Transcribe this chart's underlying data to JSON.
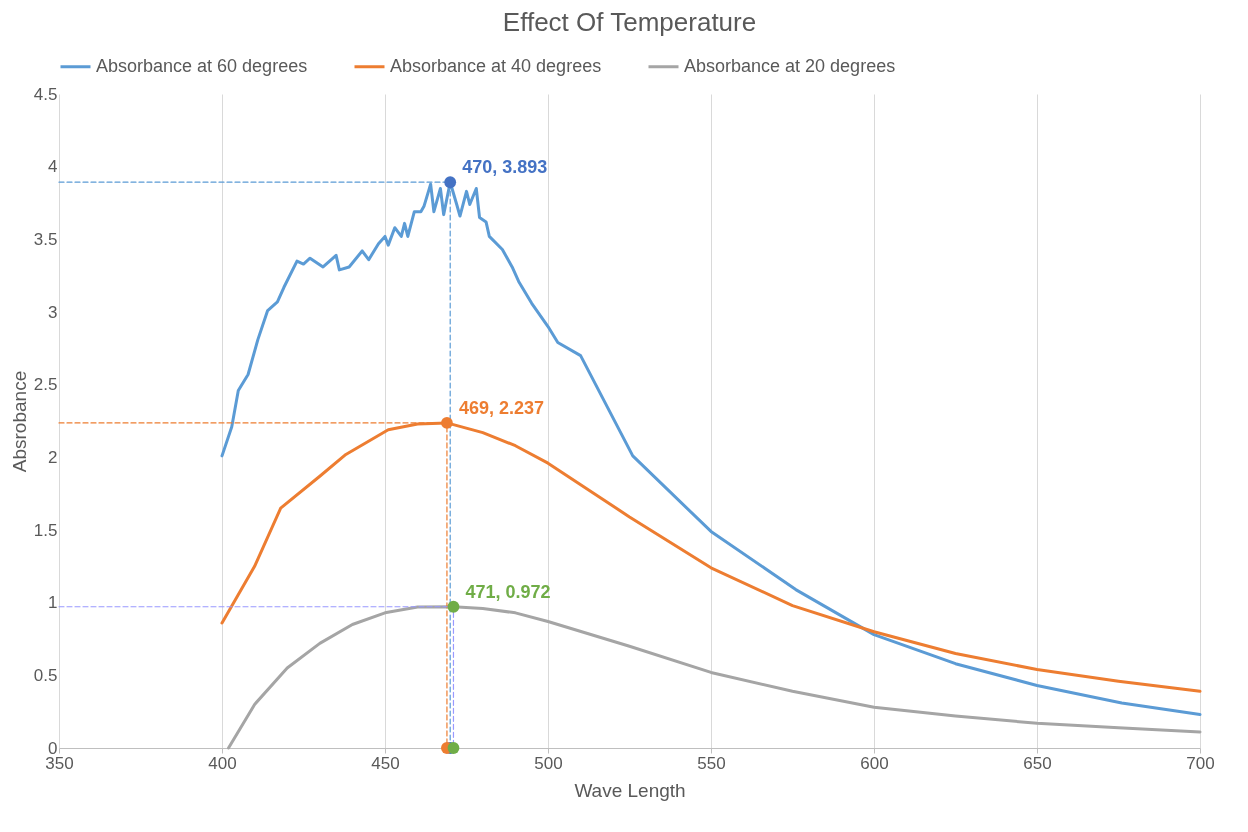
{
  "chart_data": {
    "type": "line",
    "title": "Effect Of Temperature",
    "xlabel": "Wave Length",
    "ylabel": "Absrobance",
    "xlim": [
      350,
      700
    ],
    "xticks": [
      350,
      400,
      450,
      500,
      550,
      600,
      650,
      700
    ],
    "ylim": [
      0,
      4.5
    ],
    "yticks": [
      0,
      0.5,
      1,
      1.5,
      2,
      2.5,
      3,
      3.5,
      4,
      4.5
    ],
    "grid": "x",
    "legend": "top",
    "line_style": "solid",
    "marker": "none",
    "series": [
      {
        "name": "Absorbance at 60 degrees",
        "color": "#5b9bd5",
        "x": [
          400,
          403,
          405,
          408,
          411,
          414,
          417,
          419,
          423,
          425,
          427,
          431,
          435,
          436,
          439,
          443,
          445,
          448,
          450,
          451,
          453,
          455,
          456,
          457,
          459,
          461,
          462,
          464,
          465,
          467,
          468,
          470,
          472,
          473,
          475,
          476,
          478,
          479,
          481,
          482,
          486,
          489,
          491,
          495,
          500,
          503,
          510,
          526,
          550,
          576,
          600,
          625,
          650,
          676,
          700
        ],
        "values": [
          2.01,
          2.21,
          2.46,
          2.57,
          2.81,
          3.01,
          3.07,
          3.17,
          3.35,
          3.33,
          3.37,
          3.31,
          3.39,
          3.29,
          3.31,
          3.42,
          3.36,
          3.47,
          3.52,
          3.46,
          3.58,
          3.52,
          3.61,
          3.52,
          3.69,
          3.69,
          3.73,
          3.88,
          3.69,
          3.85,
          3.67,
          3.893,
          3.74,
          3.66,
          3.83,
          3.74,
          3.85,
          3.65,
          3.62,
          3.52,
          3.43,
          3.31,
          3.21,
          3.06,
          2.9,
          2.79,
          2.7,
          2.01,
          1.49,
          1.09,
          0.78,
          0.58,
          0.43,
          0.31,
          0.23
        ]
      },
      {
        "name": "Absorbance at 40 degrees",
        "color": "#ed7d31",
        "x": [
          400,
          410,
          418,
          430,
          438,
          451,
          460,
          469,
          480,
          490,
          500,
          525,
          550,
          575,
          600,
          625,
          650,
          675,
          700
        ],
        "values": [
          0.86,
          1.25,
          1.65,
          1.87,
          2.02,
          2.19,
          2.23,
          2.237,
          2.17,
          2.08,
          1.96,
          1.59,
          1.24,
          0.98,
          0.8,
          0.65,
          0.54,
          0.46,
          0.39
        ]
      },
      {
        "name": "Absorbance at 20 degrees",
        "color": "#a5a5a5",
        "x": [
          402,
          410,
          420,
          430,
          440,
          450,
          460,
          471,
          480,
          490,
          500,
          525,
          550,
          575,
          600,
          625,
          650,
          675,
          700
        ],
        "values": [
          0,
          0.3,
          0.55,
          0.72,
          0.85,
          0.93,
          0.97,
          0.972,
          0.96,
          0.93,
          0.87,
          0.7,
          0.52,
          0.39,
          0.28,
          0.22,
          0.17,
          0.14,
          0.11
        ]
      },
      {
        "type": "line",
        "line_style": "dashed",
        "color": "#5b9bd5",
        "x": [
          350,
          470,
          470
        ],
        "values": [
          3.893,
          3.893,
          0
        ]
      },
      {
        "type": "line",
        "line_style": "dashed",
        "color": "#ed7d31",
        "x": [
          350,
          469,
          469
        ],
        "values": [
          2.237,
          2.237,
          0
        ]
      },
      {
        "type": "line",
        "line_style": "dashed",
        "color": "#9999ff",
        "x": [
          350,
          471,
          471
        ],
        "values": [
          0.972,
          0.972,
          0
        ]
      },
      {
        "type": "scatter",
        "marker": "circle",
        "color": "#4472c4",
        "x": [
          470,
          470
        ],
        "values": [
          3.893,
          0
        ]
      },
      {
        "type": "scatter",
        "marker": "circle",
        "color": "#ed7d31",
        "x": [
          469,
          469
        ],
        "values": [
          2.237,
          0
        ]
      },
      {
        "type": "scatter",
        "marker": "circle",
        "color": "#70ad47",
        "x": [
          471,
          471
        ],
        "values": [
          0.972,
          0
        ]
      }
    ],
    "annotations": [
      {
        "text": "470, 3.893",
        "x": 470,
        "y": 3.893
      },
      {
        "text": "469, 2.237",
        "x": 469,
        "y": 2.237
      },
      {
        "text": "471, 0.972",
        "x": 471,
        "y": 0.972
      }
    ]
  }
}
